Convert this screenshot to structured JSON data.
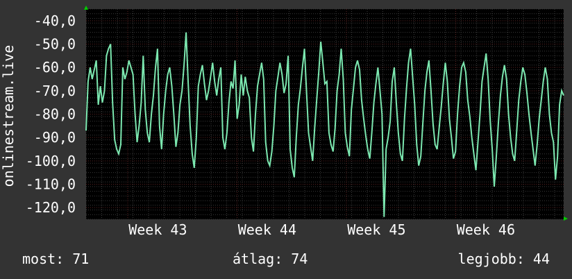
{
  "colors": {
    "background": "#333333",
    "plot_background": "#000000",
    "series": "#7ce8b0",
    "grid_major": "#5a2020",
    "grid_minor": "#3a3a3a",
    "axis_arrow": "#00cc00"
  },
  "footer": {
    "current": "most: 71",
    "average": "átlag: 74",
    "best": "legjobb: 44"
  },
  "chart_data": {
    "type": "line",
    "ylabel": "onlinestream.live",
    "ylim": [
      -125,
      -35
    ],
    "yticks": [
      -40,
      -50,
      -60,
      -70,
      -80,
      -90,
      -100,
      -110,
      -120
    ],
    "ytick_labels": [
      "-40,0",
      "-50,0",
      "-60,0",
      "-70,0",
      "-80,0",
      "-90,0",
      "-100,0",
      "-110,0",
      "-120,0"
    ],
    "x_range": [
      "Week 42 (late)",
      "Week 46 (end)"
    ],
    "xticks": [
      "Week 43",
      "Week 44",
      "Week 45",
      "Week 46"
    ],
    "grid": true,
    "series": [
      {
        "values": [
          -87,
          -66,
          -60,
          -65,
          -61,
          -57,
          -76,
          -68,
          -75,
          -70,
          -55,
          -52,
          -50,
          -75,
          -91,
          -95,
          -97,
          -93,
          -60,
          -65,
          -62,
          -57,
          -60,
          -63,
          -80,
          -92,
          -85,
          -75,
          -55,
          -78,
          -88,
          -92,
          -80,
          -72,
          -60,
          -52,
          -85,
          -95,
          -80,
          -70,
          -63,
          -60,
          -68,
          -80,
          -94,
          -88,
          -76,
          -70,
          -59,
          -45,
          -66,
          -85,
          -97,
          -103,
          -90,
          -68,
          -63,
          -59,
          -67,
          -74,
          -70,
          -64,
          -58,
          -66,
          -72,
          -65,
          -60,
          -90,
          -95,
          -88,
          -75,
          -66,
          -69,
          -57,
          -82,
          -76,
          -63,
          -72,
          -64,
          -70,
          -73,
          -90,
          -96,
          -80,
          -68,
          -63,
          -58,
          -65,
          -92,
          -100,
          -102,
          -96,
          -85,
          -70,
          -64,
          -58,
          -63,
          -71,
          -67,
          -55,
          -95,
          -103,
          -107,
          -90,
          -76,
          -69,
          -60,
          -52,
          -70,
          -88,
          -94,
          -100,
          -86,
          -74,
          -62,
          -49,
          -58,
          -67,
          -66,
          -88,
          -93,
          -96,
          -86,
          -70,
          -63,
          -52,
          -65,
          -88,
          -94,
          -98,
          -78,
          -69,
          -60,
          -57,
          -61,
          -74,
          -82,
          -89,
          -95,
          -99,
          -88,
          -75,
          -67,
          -60,
          -70,
          -80,
          -124,
          -95,
          -90,
          -83,
          -66,
          -60,
          -75,
          -88,
          -97,
          -100,
          -82,
          -69,
          -58,
          -52,
          -64,
          -76,
          -93,
          -102,
          -98,
          -84,
          -70,
          -62,
          -57,
          -70,
          -84,
          -93,
          -95,
          -86,
          -77,
          -67,
          -58,
          -66,
          -82,
          -90,
          -99,
          -96,
          -80,
          -68,
          -60,
          -58,
          -62,
          -74,
          -81,
          -90,
          -97,
          -104,
          -92,
          -80,
          -66,
          -60,
          -54,
          -65,
          -83,
          -95,
          -111,
          -98,
          -84,
          -72,
          -64,
          -59,
          -65,
          -80,
          -90,
          -97,
          -100,
          -87,
          -74,
          -66,
          -60,
          -63,
          -71,
          -80,
          -88,
          -95,
          -102,
          -93,
          -82,
          -74,
          -66,
          -60,
          -65,
          -80,
          -88,
          -92,
          -108,
          -98,
          -76,
          -70,
          -72
        ]
      }
    ]
  }
}
